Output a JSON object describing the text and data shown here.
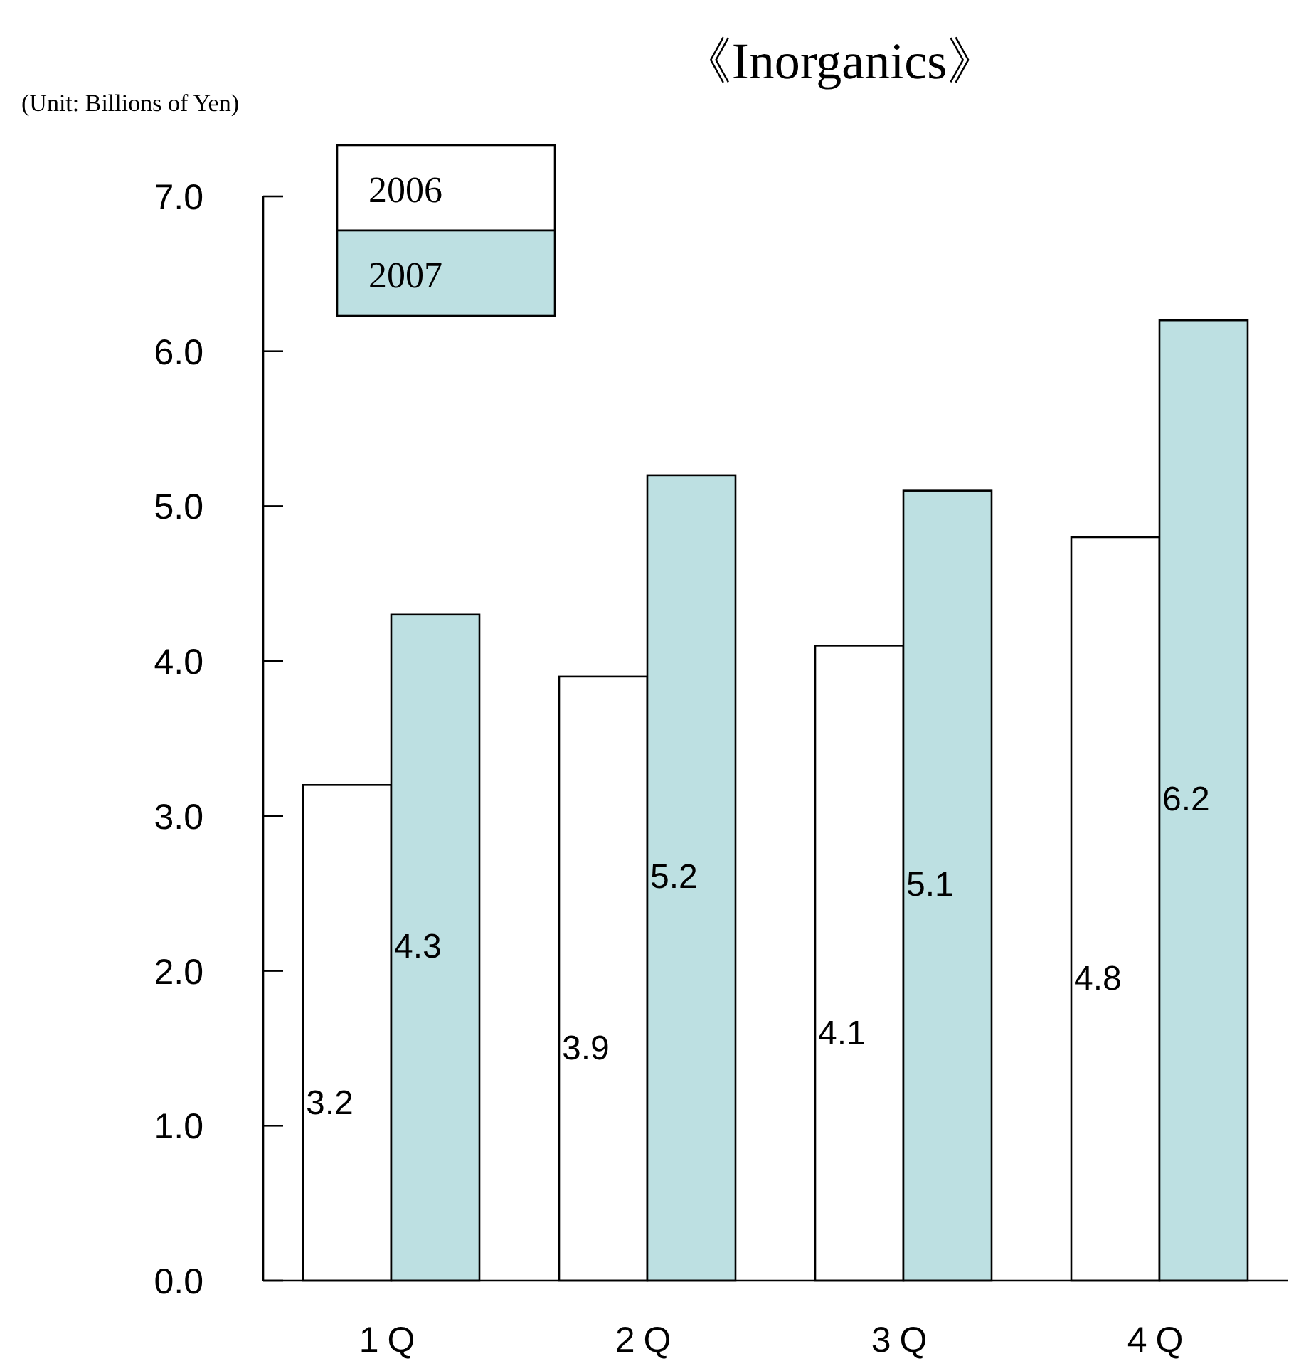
{
  "chart_data": {
    "type": "bar",
    "title": "《Inorganics》",
    "annotations": [
      "(Unit: Billions of Yen)"
    ],
    "categories": [
      "1Q",
      "2Q",
      "3Q",
      "4Q"
    ],
    "series": [
      {
        "name": "2006",
        "color": "#ffffff",
        "values": [
          3.2,
          3.9,
          4.1,
          4.8
        ]
      },
      {
        "name": "2007",
        "color": "#bde0e2",
        "values": [
          4.3,
          5.2,
          5.1,
          6.2
        ]
      }
    ],
    "ylim": [
      0,
      7
    ],
    "yticks": [
      {
        "value": 0,
        "label": "0.0"
      },
      {
        "value": 1,
        "label": "1.0"
      },
      {
        "value": 2,
        "label": "2.0"
      },
      {
        "value": 3,
        "label": "3.0"
      },
      {
        "value": 4,
        "label": "4.0"
      },
      {
        "value": 5,
        "label": "5.0"
      },
      {
        "value": 6,
        "label": "6.0"
      },
      {
        "value": 7,
        "label": "7.0"
      }
    ],
    "data_labels": true,
    "grid": false,
    "legend": "top left"
  }
}
